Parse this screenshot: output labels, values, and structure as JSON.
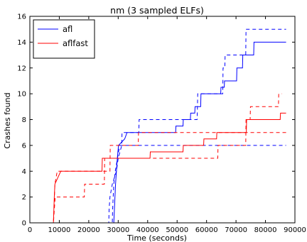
{
  "chart_data": {
    "type": "line",
    "title": "nm (3 sampled ELFs)",
    "xlabel": "Time (seconds)",
    "ylabel": "Crashes found",
    "xlim": [
      0,
      90000
    ],
    "ylim": [
      0,
      16
    ],
    "xticks": [
      "0",
      "10000",
      "20000",
      "30000",
      "40000",
      "50000",
      "60000",
      "70000",
      "80000",
      "90000"
    ],
    "yticks": [
      "0",
      "2",
      "4",
      "6",
      "8",
      "10",
      "12",
      "14",
      "16"
    ],
    "grid": false,
    "legend_position": "top-left",
    "series": [
      {
        "name": "afl",
        "color": "#0000ff",
        "style": "solid",
        "points": [
          [
            0,
            0
          ],
          [
            28500,
            0
          ],
          [
            28700,
            1
          ],
          [
            28900,
            2
          ],
          [
            29100,
            3
          ],
          [
            29400,
            4
          ],
          [
            29700,
            5
          ],
          [
            30100,
            6
          ],
          [
            32200,
            6.5
          ],
          [
            33000,
            7
          ],
          [
            49500,
            7
          ],
          [
            49600,
            7.5
          ],
          [
            52000,
            7.5
          ],
          [
            52100,
            8
          ],
          [
            54500,
            8
          ],
          [
            54600,
            8.5
          ],
          [
            56000,
            8.5
          ],
          [
            56100,
            9
          ],
          [
            58000,
            9
          ],
          [
            58100,
            10
          ],
          [
            64800,
            10
          ],
          [
            64900,
            10.5
          ],
          [
            66000,
            10.5
          ],
          [
            66100,
            11
          ],
          [
            70200,
            11
          ],
          [
            70300,
            12
          ],
          [
            72200,
            12
          ],
          [
            72300,
            13
          ],
          [
            76000,
            13
          ],
          [
            76100,
            14
          ],
          [
            87000,
            14
          ]
        ]
      },
      {
        "name": "",
        "color": "#0000ff",
        "style": "dashed",
        "points": [
          [
            0,
            0
          ],
          [
            28000,
            0
          ],
          [
            28100,
            1
          ],
          [
            28300,
            2
          ],
          [
            28500,
            3
          ],
          [
            29000,
            4
          ],
          [
            30500,
            6
          ],
          [
            33000,
            6
          ],
          [
            87000,
            6
          ]
        ]
      },
      {
        "name": "",
        "color": "#0000ff",
        "style": "dashed",
        "points": [
          [
            0,
            0
          ],
          [
            26800,
            0
          ],
          [
            26900,
            1
          ],
          [
            27200,
            2
          ],
          [
            28000,
            3
          ],
          [
            29400,
            4
          ],
          [
            30000,
            5
          ],
          [
            31200,
            6
          ],
          [
            31300,
            7
          ],
          [
            37000,
            7
          ],
          [
            37100,
            8
          ],
          [
            56800,
            8
          ],
          [
            56900,
            9
          ],
          [
            57000,
            10
          ],
          [
            65500,
            10
          ],
          [
            65600,
            12
          ],
          [
            66200,
            12
          ],
          [
            66300,
            13
          ],
          [
            73300,
            13
          ],
          [
            73400,
            15
          ],
          [
            87000,
            15
          ]
        ]
      },
      {
        "name": "aflfast",
        "color": "#ff0000",
        "style": "solid",
        "points": [
          [
            0,
            0
          ],
          [
            8000,
            0
          ],
          [
            8300,
            2
          ],
          [
            8500,
            3
          ],
          [
            9500,
            3.5
          ],
          [
            10500,
            4
          ],
          [
            24500,
            4
          ],
          [
            24600,
            5
          ],
          [
            40800,
            5
          ],
          [
            40900,
            5.5
          ],
          [
            52000,
            5.5
          ],
          [
            52100,
            6
          ],
          [
            59000,
            6
          ],
          [
            59100,
            6.5
          ],
          [
            63400,
            6.5
          ],
          [
            63500,
            7
          ],
          [
            73500,
            7
          ],
          [
            73600,
            8
          ],
          [
            85000,
            8
          ],
          [
            85100,
            8.5
          ],
          [
            87000,
            8.5
          ]
        ]
      },
      {
        "name": "",
        "color": "#ff0000",
        "style": "dashed",
        "points": [
          [
            0,
            0
          ],
          [
            8000,
            0
          ],
          [
            8200,
            1
          ],
          [
            8500,
            3
          ],
          [
            9300,
            4
          ],
          [
            27200,
            4
          ],
          [
            27300,
            6
          ],
          [
            36800,
            6
          ],
          [
            36900,
            7
          ],
          [
            87000,
            7
          ]
        ]
      },
      {
        "name": "",
        "color": "#ff0000",
        "style": "dashed",
        "points": [
          [
            0,
            0
          ],
          [
            8000,
            0
          ],
          [
            8600,
            2
          ],
          [
            18500,
            2
          ],
          [
            18600,
            3
          ],
          [
            25300,
            3
          ],
          [
            25400,
            5
          ],
          [
            63800,
            5
          ],
          [
            63900,
            6
          ],
          [
            73300,
            6
          ],
          [
            73400,
            8
          ],
          [
            74800,
            8
          ],
          [
            74900,
            9
          ],
          [
            84400,
            9
          ],
          [
            84500,
            10
          ],
          [
            85500,
            10
          ]
        ]
      }
    ]
  }
}
